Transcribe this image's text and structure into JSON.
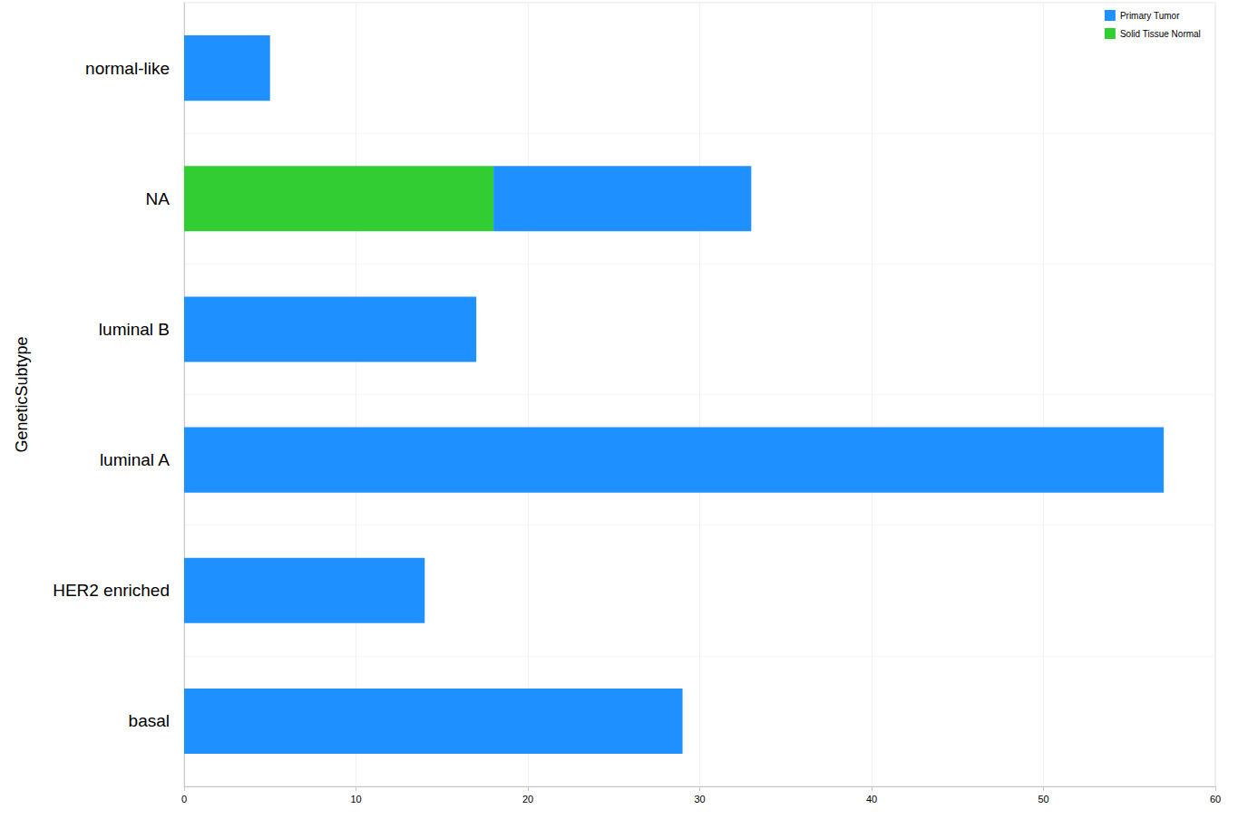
{
  "chart_data": {
    "type": "bar",
    "orientation": "horizontal",
    "stacked": true,
    "y_label": "GeneticSubtype",
    "categories": [
      "basal",
      "HER2 enriched",
      "luminal A",
      "luminal B",
      "NA",
      "normal-like"
    ],
    "series": [
      {
        "name": "Primary Tumor",
        "color": "#1e90ff",
        "values": [
          29,
          14,
          57,
          17,
          15,
          5
        ]
      },
      {
        "name": "Solid Tissue Normal",
        "color": "#32cd32",
        "values": [
          null,
          null,
          null,
          null,
          18,
          null
        ]
      }
    ],
    "xlim": [
      0,
      60
    ],
    "xticks": [
      0,
      10,
      20,
      30,
      40,
      50,
      60
    ],
    "grid": true,
    "legend": "upper right"
  }
}
